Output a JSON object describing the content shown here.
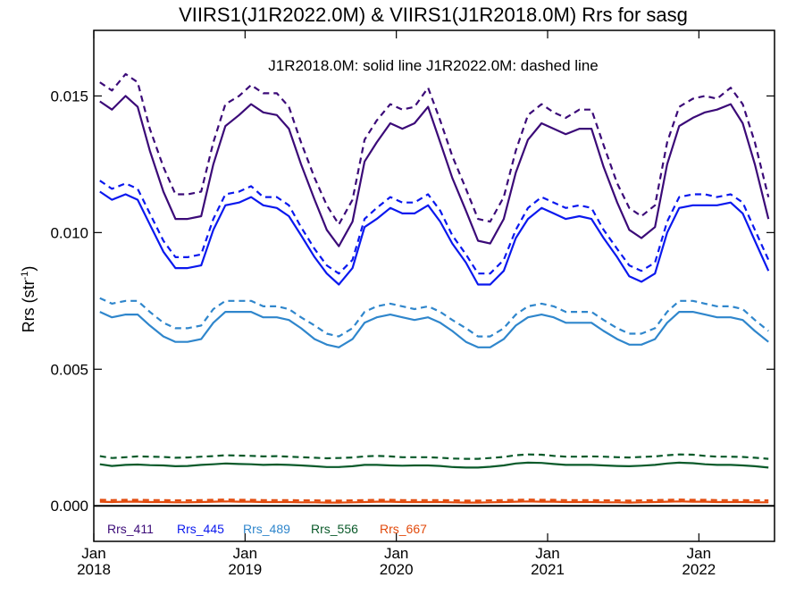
{
  "chart_data": {
    "type": "line",
    "title": "VIIRS1(J1R2022.0M) & VIIRS1(J1R2018.0M)  Rrs for sasg",
    "subtitle": "J1R2018.0M: solid line   J1R2022.0M: dashed line",
    "ylabel": "Rrs (str",
    "ylabel_sup": "-1",
    "ylabel_close": ")",
    "xlim": [
      2018.0,
      2022.5
    ],
    "ylim": [
      -0.0013,
      0.0174
    ],
    "yticks": [
      0.0,
      0.005,
      0.01,
      0.015
    ],
    "ytick_labels": [
      "0.000",
      "0.005",
      "0.010",
      "0.015"
    ],
    "xticks": [
      2018.0,
      2019.0,
      2020.0,
      2021.0,
      2022.0
    ],
    "xtick_labels_top": [
      "Jan",
      "Jan",
      "Jan",
      "Jan",
      "Jan"
    ],
    "xtick_labels_bottom": [
      "2018",
      "2019",
      "2020",
      "2021",
      "2022"
    ],
    "zero_line": 0.0,
    "grid": false,
    "legend_position": "bottom-left",
    "x": [
      2018.04,
      2018.12,
      2018.21,
      2018.29,
      2018.37,
      2018.46,
      2018.54,
      2018.62,
      2018.71,
      2018.79,
      2018.87,
      2018.96,
      2019.04,
      2019.12,
      2019.21,
      2019.29,
      2019.37,
      2019.46,
      2019.54,
      2019.62,
      2019.71,
      2019.79,
      2019.87,
      2019.96,
      2020.04,
      2020.12,
      2020.21,
      2020.29,
      2020.37,
      2020.46,
      2020.54,
      2020.62,
      2020.71,
      2020.79,
      2020.87,
      2020.96,
      2021.04,
      2021.12,
      2021.21,
      2021.29,
      2021.37,
      2021.46,
      2021.54,
      2021.62,
      2021.71,
      2021.79,
      2021.87,
      2021.96,
      2022.04,
      2022.12,
      2022.21,
      2022.29,
      2022.37,
      2022.46
    ],
    "series": [
      {
        "name": "Rrs_411",
        "color": "#3b0a78",
        "dash": false,
        "values": [
          0.0148,
          0.0145,
          0.015,
          0.0146,
          0.013,
          0.0115,
          0.0105,
          0.0105,
          0.0106,
          0.0125,
          0.0139,
          0.0143,
          0.0147,
          0.0144,
          0.0143,
          0.0138,
          0.0125,
          0.0112,
          0.0101,
          0.0095,
          0.0104,
          0.0126,
          0.0133,
          0.014,
          0.0138,
          0.014,
          0.0146,
          0.0133,
          0.012,
          0.0108,
          0.0097,
          0.0096,
          0.0105,
          0.0122,
          0.0134,
          0.014,
          0.0138,
          0.0136,
          0.0138,
          0.0138,
          0.0124,
          0.0111,
          0.0101,
          0.0098,
          0.0102,
          0.0125,
          0.0139,
          0.0142,
          0.0144,
          0.0145,
          0.0147,
          0.014,
          0.0125,
          0.0105
        ]
      },
      {
        "name": "Rrs_411",
        "color": "#3b0a78",
        "dash": true,
        "values": [
          0.0155,
          0.0152,
          0.0158,
          0.0155,
          0.0138,
          0.0124,
          0.0114,
          0.0114,
          0.0115,
          0.0133,
          0.0147,
          0.015,
          0.0154,
          0.0151,
          0.0151,
          0.0146,
          0.0133,
          0.012,
          0.011,
          0.0103,
          0.0112,
          0.0134,
          0.0141,
          0.0147,
          0.0145,
          0.0146,
          0.0153,
          0.0141,
          0.0128,
          0.0116,
          0.0105,
          0.0104,
          0.0113,
          0.013,
          0.0143,
          0.0147,
          0.0144,
          0.0142,
          0.0145,
          0.0145,
          0.0132,
          0.0118,
          0.0109,
          0.0106,
          0.011,
          0.0133,
          0.0146,
          0.0149,
          0.015,
          0.0149,
          0.0153,
          0.0147,
          0.0133,
          0.0113
        ]
      },
      {
        "name": "Rrs_445",
        "color": "#0a18ee",
        "dash": false,
        "values": [
          0.0115,
          0.0112,
          0.0114,
          0.0112,
          0.0103,
          0.0093,
          0.0087,
          0.0087,
          0.0088,
          0.0101,
          0.011,
          0.0111,
          0.0113,
          0.011,
          0.0109,
          0.0106,
          0.0099,
          0.0091,
          0.0085,
          0.0081,
          0.0087,
          0.0102,
          0.0105,
          0.0109,
          0.0107,
          0.0107,
          0.011,
          0.0104,
          0.0096,
          0.0089,
          0.0081,
          0.0081,
          0.0086,
          0.0098,
          0.0105,
          0.0109,
          0.0107,
          0.0105,
          0.0106,
          0.0105,
          0.0098,
          0.0091,
          0.0084,
          0.0082,
          0.0085,
          0.01,
          0.0109,
          0.011,
          0.011,
          0.011,
          0.0111,
          0.0107,
          0.0097,
          0.0086
        ]
      },
      {
        "name": "Rrs_445",
        "color": "#0a18ee",
        "dash": true,
        "values": [
          0.0119,
          0.0116,
          0.0118,
          0.0116,
          0.0107,
          0.0097,
          0.0091,
          0.0091,
          0.0092,
          0.0105,
          0.0114,
          0.0115,
          0.0117,
          0.0113,
          0.0113,
          0.011,
          0.0102,
          0.0094,
          0.0088,
          0.0085,
          0.009,
          0.0105,
          0.0109,
          0.0113,
          0.0111,
          0.0111,
          0.0114,
          0.0108,
          0.0099,
          0.0092,
          0.0085,
          0.0085,
          0.009,
          0.0101,
          0.0109,
          0.0113,
          0.0111,
          0.0109,
          0.011,
          0.0109,
          0.0101,
          0.0094,
          0.0088,
          0.0086,
          0.0089,
          0.0104,
          0.0113,
          0.0114,
          0.0114,
          0.0113,
          0.0114,
          0.0111,
          0.0101,
          0.009
        ]
      },
      {
        "name": "Rrs_489",
        "color": "#2f86cc",
        "dash": false,
        "values": [
          0.0071,
          0.0069,
          0.007,
          0.007,
          0.0066,
          0.0062,
          0.006,
          0.006,
          0.0061,
          0.0067,
          0.0071,
          0.0071,
          0.0071,
          0.0069,
          0.0069,
          0.0068,
          0.0065,
          0.0061,
          0.0059,
          0.0058,
          0.0061,
          0.0067,
          0.0069,
          0.007,
          0.0069,
          0.0068,
          0.0069,
          0.0067,
          0.0064,
          0.006,
          0.0058,
          0.0058,
          0.0061,
          0.0066,
          0.0069,
          0.007,
          0.0069,
          0.0067,
          0.0067,
          0.0067,
          0.0064,
          0.0061,
          0.0059,
          0.0059,
          0.0061,
          0.0067,
          0.0071,
          0.0071,
          0.007,
          0.0069,
          0.0069,
          0.0068,
          0.0064,
          0.006
        ]
      },
      {
        "name": "Rrs_489",
        "color": "#2f86cc",
        "dash": true,
        "values": [
          0.0076,
          0.0074,
          0.0075,
          0.0075,
          0.0071,
          0.0067,
          0.0065,
          0.0065,
          0.0066,
          0.0072,
          0.0075,
          0.0075,
          0.0075,
          0.0073,
          0.0073,
          0.0072,
          0.0069,
          0.0066,
          0.0063,
          0.0062,
          0.0065,
          0.0071,
          0.0073,
          0.0074,
          0.0073,
          0.0072,
          0.0073,
          0.0071,
          0.0068,
          0.0065,
          0.0062,
          0.0062,
          0.0065,
          0.007,
          0.0073,
          0.0074,
          0.0073,
          0.0071,
          0.0071,
          0.0071,
          0.0068,
          0.0065,
          0.0063,
          0.0063,
          0.0065,
          0.0071,
          0.0075,
          0.0075,
          0.0074,
          0.0073,
          0.0073,
          0.0072,
          0.0068,
          0.0064
        ]
      },
      {
        "name": "Rrs_556",
        "color": "#0a5a2a",
        "dash": false,
        "values": [
          0.00152,
          0.00146,
          0.0015,
          0.00151,
          0.00149,
          0.00148,
          0.00145,
          0.00146,
          0.0015,
          0.00152,
          0.00155,
          0.00153,
          0.00152,
          0.0015,
          0.00151,
          0.0015,
          0.00148,
          0.00145,
          0.00142,
          0.00142,
          0.00145,
          0.0015,
          0.0015,
          0.00148,
          0.00147,
          0.00148,
          0.00148,
          0.00146,
          0.00142,
          0.0014,
          0.0014,
          0.00143,
          0.00148,
          0.00155,
          0.00158,
          0.00157,
          0.00153,
          0.0015,
          0.0015,
          0.0015,
          0.00148,
          0.00146,
          0.00145,
          0.00147,
          0.0015,
          0.00155,
          0.00158,
          0.00156,
          0.00152,
          0.0015,
          0.0015,
          0.00148,
          0.00145,
          0.0014
        ]
      },
      {
        "name": "Rrs_556",
        "color": "#0a5a2a",
        "dash": true,
        "values": [
          0.00182,
          0.00175,
          0.00178,
          0.00181,
          0.0018,
          0.00179,
          0.00176,
          0.00177,
          0.0018,
          0.00182,
          0.00185,
          0.00184,
          0.00183,
          0.00181,
          0.00182,
          0.0018,
          0.00178,
          0.00176,
          0.00174,
          0.00175,
          0.00177,
          0.00181,
          0.00183,
          0.00181,
          0.00178,
          0.00178,
          0.00178,
          0.00176,
          0.00173,
          0.00172,
          0.00172,
          0.00175,
          0.00179,
          0.00185,
          0.00188,
          0.00187,
          0.00183,
          0.0018,
          0.0018,
          0.00181,
          0.0018,
          0.00178,
          0.00177,
          0.00179,
          0.00181,
          0.00185,
          0.00188,
          0.00187,
          0.00183,
          0.0018,
          0.0018,
          0.00179,
          0.00176,
          0.00172
        ]
      },
      {
        "name": "Rrs_667",
        "color": "#e24a0c",
        "dash": false,
        "values": [
          0.00015,
          0.00014,
          0.00015,
          0.00015,
          0.00014,
          0.00014,
          0.00013,
          0.00013,
          0.00014,
          0.00015,
          0.00016,
          0.00015,
          0.00015,
          0.00014,
          0.00014,
          0.00014,
          0.00013,
          0.00013,
          0.00012,
          0.00012,
          0.00013,
          0.00014,
          0.00015,
          0.00015,
          0.00014,
          0.00014,
          0.00014,
          0.00014,
          0.00013,
          0.00012,
          0.00012,
          0.00013,
          0.00014,
          0.00015,
          0.00016,
          0.00015,
          0.00015,
          0.00014,
          0.00014,
          0.00014,
          0.00013,
          0.00013,
          0.00012,
          0.00013,
          0.00014,
          0.00015,
          0.00016,
          0.00015,
          0.00015,
          0.00014,
          0.00014,
          0.00014,
          0.00013,
          0.00013
        ]
      },
      {
        "name": "Rrs_667",
        "color": "#e24a0c",
        "dash": true,
        "values": [
          0.00022,
          0.00021,
          0.00022,
          0.00022,
          0.00021,
          0.00021,
          0.0002,
          0.0002,
          0.00021,
          0.00022,
          0.00023,
          0.00022,
          0.00022,
          0.00021,
          0.00021,
          0.00021,
          0.0002,
          0.0002,
          0.00019,
          0.00019,
          0.0002,
          0.00021,
          0.00022,
          0.00022,
          0.00021,
          0.00021,
          0.00021,
          0.00021,
          0.0002,
          0.00019,
          0.00019,
          0.0002,
          0.00021,
          0.00022,
          0.00023,
          0.00022,
          0.00022,
          0.00021,
          0.00021,
          0.00021,
          0.0002,
          0.0002,
          0.00019,
          0.0002,
          0.00021,
          0.00022,
          0.00023,
          0.00022,
          0.00022,
          0.00021,
          0.00021,
          0.00021,
          0.0002,
          0.0002
        ]
      }
    ],
    "legend": [
      {
        "label": "Rrs_411",
        "color": "#3b0a78"
      },
      {
        "label": "Rrs_445",
        "color": "#0a18ee"
      },
      {
        "label": "Rrs_489",
        "color": "#2f86cc"
      },
      {
        "label": "Rrs_556",
        "color": "#0a5a2a"
      },
      {
        "label": "Rrs_667",
        "color": "#e24a0c"
      }
    ]
  }
}
